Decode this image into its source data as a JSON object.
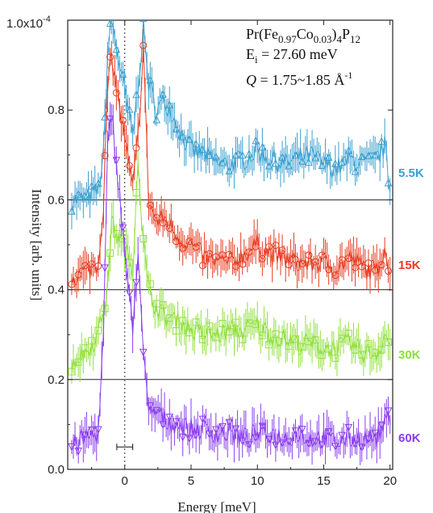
{
  "chart_data": {
    "type": "scatter",
    "title": "",
    "xlabel": "Energy [meV]",
    "ylabel": "Intensity [arb. units]",
    "xlim": [
      -4.3,
      20.2
    ],
    "ylim": [
      0,
      1.0
    ],
    "y_multiplier_label": "1.0x10",
    "y_multiplier_exponent": "-4",
    "xticks": [
      0,
      5,
      10,
      15,
      20
    ],
    "xtick_labels": [
      "0",
      "5",
      "10",
      "15",
      "20"
    ],
    "yticks": [
      0.0,
      0.2,
      0.4,
      0.6,
      0.8
    ],
    "ytick_labels": [
      "0.0",
      "0.2",
      "0.4",
      "0.6",
      "0.8"
    ],
    "offset_lines": [
      0.2,
      0.4,
      0.6
    ],
    "elastic_line_x": 0,
    "resolution_bar": {
      "center": 0,
      "halfwidth": 0.6,
      "y": 0.05
    },
    "annotations": {
      "compound": {
        "prefix": "Pr(Fe",
        "sub1": "0.97",
        "mid": "Co",
        "sub2": "0.03",
        "mid2": ")",
        "sub3": "4",
        "mid3": "P",
        "sub4": "12"
      },
      "energy": {
        "prefix": "E",
        "sub": "i",
        "suffix": " = 27.60 meV"
      },
      "q": {
        "label": "Q",
        "text": " = 1.75~1.85 Å",
        "sup": "-1"
      }
    },
    "series": [
      {
        "name": "5.5K",
        "color": "#3aa0cf",
        "marker": "triangle-up",
        "points": [
          [
            -4.0,
            0.6
          ],
          [
            -3.0,
            0.6
          ],
          [
            -2.0,
            0.62
          ],
          [
            -1.6,
            0.7
          ],
          [
            -1.3,
            0.92
          ],
          [
            -1.0,
            1.0
          ],
          [
            0.6,
            0.74
          ],
          [
            1.0,
            0.86
          ],
          [
            1.4,
            0.98
          ],
          [
            1.8,
            0.86
          ],
          [
            2.4,
            0.8
          ],
          [
            3.0,
            0.82
          ],
          [
            3.5,
            0.8
          ],
          [
            4.0,
            0.76
          ],
          [
            5.0,
            0.71
          ],
          [
            6.0,
            0.7
          ],
          [
            7.0,
            0.68
          ],
          [
            8.0,
            0.68
          ],
          [
            9.0,
            0.69
          ],
          [
            10.0,
            0.71
          ],
          [
            11.0,
            0.69
          ],
          [
            12.0,
            0.68
          ],
          [
            13.0,
            0.69
          ],
          [
            14.0,
            0.7
          ],
          [
            15.0,
            0.68
          ],
          [
            16.0,
            0.67
          ],
          [
            17.0,
            0.69
          ],
          [
            18.0,
            0.68
          ],
          [
            19.0,
            0.69
          ],
          [
            19.6,
            0.72
          ],
          [
            20.0,
            0.62
          ]
        ]
      },
      {
        "name": "15K",
        "color": "#e63b1f",
        "marker": "circle",
        "points": [
          [
            -4.0,
            0.43
          ],
          [
            -3.0,
            0.44
          ],
          [
            -2.0,
            0.46
          ],
          [
            -1.6,
            0.6
          ],
          [
            -1.3,
            0.84
          ],
          [
            -1.0,
            0.92
          ],
          [
            0.6,
            0.62
          ],
          [
            1.0,
            0.74
          ],
          [
            1.4,
            0.94
          ],
          [
            1.8,
            0.6
          ],
          [
            2.4,
            0.55
          ],
          [
            3.0,
            0.56
          ],
          [
            4.0,
            0.52
          ],
          [
            5.0,
            0.5
          ],
          [
            6.0,
            0.47
          ],
          [
            7.0,
            0.46
          ],
          [
            8.0,
            0.46
          ],
          [
            9.0,
            0.48
          ],
          [
            10.0,
            0.5
          ],
          [
            11.0,
            0.48
          ],
          [
            12.0,
            0.47
          ],
          [
            13.0,
            0.46
          ],
          [
            14.0,
            0.46
          ],
          [
            15.0,
            0.46
          ],
          [
            16.0,
            0.45
          ],
          [
            17.0,
            0.47
          ],
          [
            18.0,
            0.45
          ],
          [
            19.0,
            0.44
          ],
          [
            19.6,
            0.5
          ],
          [
            20.0,
            0.42
          ]
        ]
      },
      {
        "name": "30K",
        "color": "#8fe03a",
        "marker": "square",
        "points": [
          [
            -4.0,
            0.24
          ],
          [
            -3.0,
            0.26
          ],
          [
            -2.0,
            0.3
          ],
          [
            -1.6,
            0.36
          ],
          [
            -1.3,
            0.4
          ],
          [
            -1.0,
            0.55
          ],
          [
            0.6,
            0.45
          ],
          [
            1.0,
            0.7
          ],
          [
            1.4,
            0.5
          ],
          [
            1.8,
            0.4
          ],
          [
            2.4,
            0.36
          ],
          [
            3.0,
            0.34
          ],
          [
            4.0,
            0.33
          ],
          [
            5.0,
            0.31
          ],
          [
            6.0,
            0.3
          ],
          [
            7.0,
            0.3
          ],
          [
            8.0,
            0.31
          ],
          [
            9.0,
            0.31
          ],
          [
            10.0,
            0.32
          ],
          [
            11.0,
            0.3
          ],
          [
            12.0,
            0.29
          ],
          [
            13.0,
            0.28
          ],
          [
            14.0,
            0.28
          ],
          [
            15.0,
            0.27
          ],
          [
            16.0,
            0.27
          ],
          [
            17.0,
            0.28
          ],
          [
            18.0,
            0.26
          ],
          [
            19.0,
            0.26
          ],
          [
            19.6,
            0.3
          ],
          [
            20.0,
            0.28
          ]
        ]
      },
      {
        "name": "60K",
        "color": "#8a3cf0",
        "marker": "triangle-down",
        "points": [
          [
            -4.0,
            0.05
          ],
          [
            -3.0,
            0.07
          ],
          [
            -2.0,
            0.08
          ],
          [
            -1.6,
            0.3
          ],
          [
            -1.3,
            0.7
          ],
          [
            -1.0,
            0.8
          ],
          [
            0.6,
            0.3
          ],
          [
            1.0,
            0.5
          ],
          [
            1.4,
            0.25
          ],
          [
            1.8,
            0.12
          ],
          [
            2.4,
            0.13
          ],
          [
            3.0,
            0.11
          ],
          [
            4.0,
            0.1
          ],
          [
            5.0,
            0.09
          ],
          [
            6.0,
            0.09
          ],
          [
            7.0,
            0.08
          ],
          [
            8.0,
            0.08
          ],
          [
            9.0,
            0.07
          ],
          [
            10.0,
            0.08
          ],
          [
            11.0,
            0.08
          ],
          [
            12.0,
            0.07
          ],
          [
            13.0,
            0.08
          ],
          [
            14.0,
            0.07
          ],
          [
            15.0,
            0.07
          ],
          [
            16.0,
            0.06
          ],
          [
            17.0,
            0.07
          ],
          [
            18.0,
            0.07
          ],
          [
            19.0,
            0.07
          ],
          [
            19.6,
            0.1
          ],
          [
            20.0,
            0.12
          ]
        ]
      }
    ]
  }
}
